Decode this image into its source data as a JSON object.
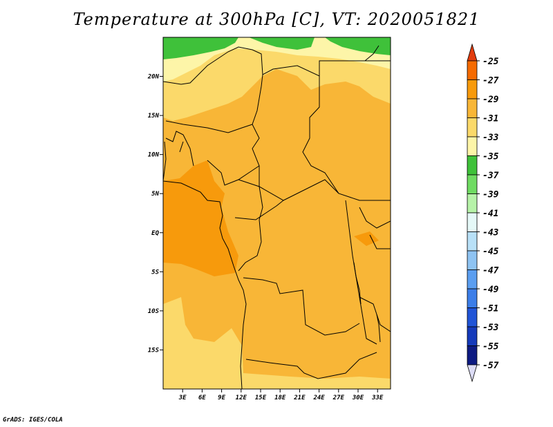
{
  "title": "Temperature at 300hPa [C], VT: 2020051821",
  "credit": "GrADS: IGES/COLA",
  "map": {
    "lat_range": [
      -20,
      25
    ],
    "lon_range": [
      0,
      35
    ],
    "lat_labels": [
      {
        "value": 20,
        "label": "20N"
      },
      {
        "value": 15,
        "label": "15N"
      },
      {
        "value": 10,
        "label": "10N"
      },
      {
        "value": 5,
        "label": "5N"
      },
      {
        "value": 0,
        "label": "EQ"
      },
      {
        "value": -5,
        "label": "5S"
      },
      {
        "value": -10,
        "label": "10S"
      },
      {
        "value": -15,
        "label": "15S"
      }
    ],
    "lon_labels": [
      {
        "value": 3,
        "label": "3E"
      },
      {
        "value": 6,
        "label": "6E"
      },
      {
        "value": 9,
        "label": "9E"
      },
      {
        "value": 12,
        "label": "12E"
      },
      {
        "value": 15,
        "label": "15E"
      },
      {
        "value": 18,
        "label": "18E"
      },
      {
        "value": 21,
        "label": "21E"
      },
      {
        "value": 24,
        "label": "24E"
      },
      {
        "value": 27,
        "label": "27E"
      },
      {
        "value": 30,
        "label": "30E"
      },
      {
        "value": 33,
        "label": "33E"
      }
    ]
  },
  "colorbar": {
    "levels": [
      {
        "label": "-25",
        "color": "#e23c0e"
      },
      {
        "label": "-27",
        "color": "#f56a00"
      },
      {
        "label": "-29",
        "color": "#f79a0c"
      },
      {
        "label": "-31",
        "color": "#f8b637"
      },
      {
        "label": "-33",
        "color": "#fbd96a"
      },
      {
        "label": "-35",
        "color": "#fdf5a8"
      },
      {
        "label": "-37",
        "color": "#3fc13a"
      },
      {
        "label": "-39",
        "color": "#6fdb62"
      },
      {
        "label": "-41",
        "color": "#b6f2a8"
      },
      {
        "label": "-43",
        "color": "#e5f8f7"
      },
      {
        "label": "-45",
        "color": "#b8e0f7"
      },
      {
        "label": "-47",
        "color": "#8ec3f2"
      },
      {
        "label": "-49",
        "color": "#5b9ef0"
      },
      {
        "label": "-51",
        "color": "#3c7ee8"
      },
      {
        "label": "-53",
        "color": "#2054d6"
      },
      {
        "label": "-55",
        "color": "#153aba"
      },
      {
        "label": "-57",
        "color": "#0d1a82"
      }
    ],
    "top_color": "#e23c0e",
    "bottom_color": "#dcdcf5"
  }
}
